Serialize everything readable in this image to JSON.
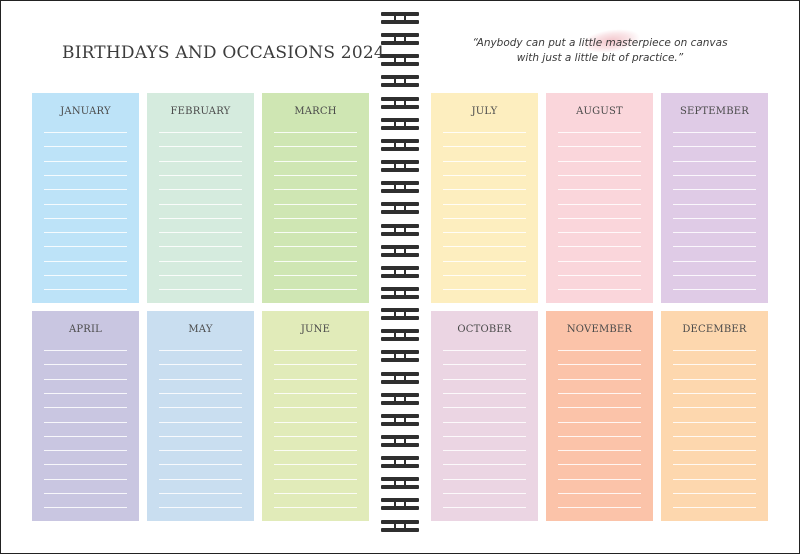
{
  "title": "BIRTHDAYS AND OCCASIONS 2024",
  "quote": {
    "line1": "“Anybody can put a little masterpiece on canvas",
    "line2": "with just a little bit of practice.”"
  },
  "colors": {
    "january": "#bde3f8",
    "february": "#d5ebde",
    "march": "#cfe6b3",
    "april": "#c9c6e1",
    "may": "#c9def0",
    "june": "#e1ebb9",
    "july": "#fdeebf",
    "august": "#fad6db",
    "september": "#dfcbe6",
    "october": "#ebd5e3",
    "november": "#fbc3a9",
    "december": "#fdd7ae",
    "spiral": "#2f2f2f"
  },
  "months": {
    "january": "JANUARY",
    "february": "FEBRUARY",
    "march": "MARCH",
    "april": "APRIL",
    "may": "MAY",
    "june": "JUNE",
    "july": "JULY",
    "august": "AUGUST",
    "september": "SEPTEMBER",
    "october": "OCTOBER",
    "november": "NOVEMBER",
    "december": "DECEMBER"
  },
  "lines_per_card": 12,
  "spiral_rings": 25
}
